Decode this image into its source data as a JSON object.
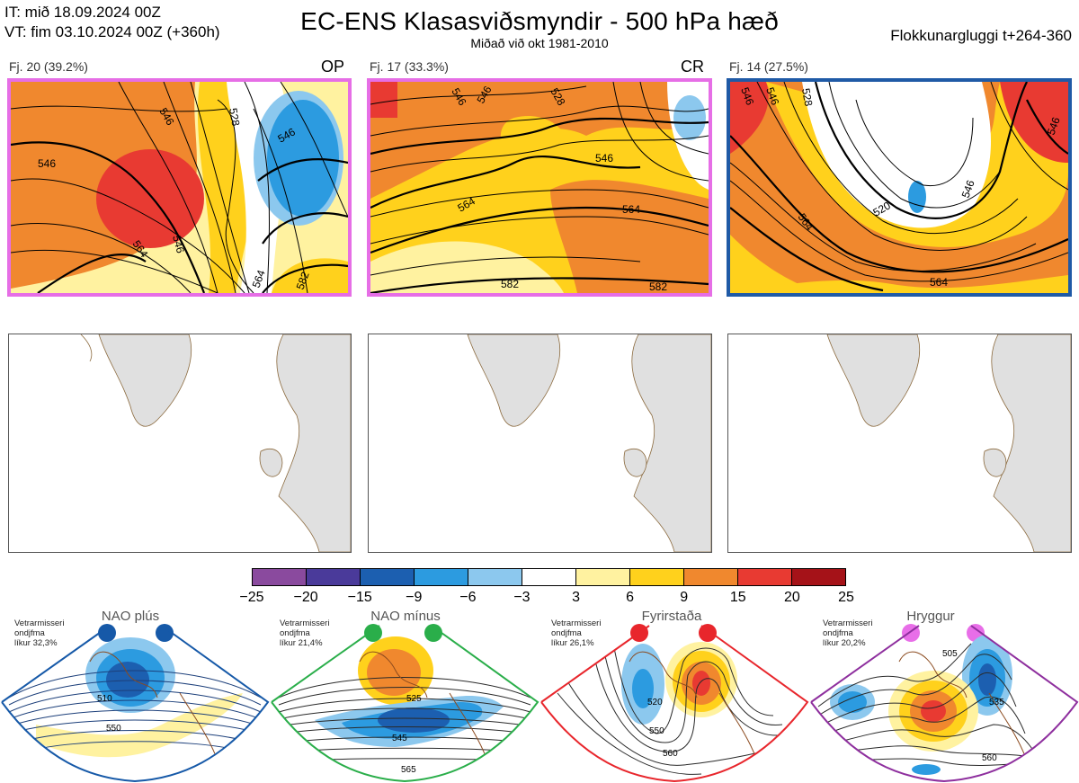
{
  "header": {
    "it_line": "IT: mið 18.09.2024 00Z",
    "vt_line": "VT: fim 03.10.2024 00Z  (+360h)",
    "title": "EC-ENS Klasasviðsmyndir - 500 hPa hæð",
    "subtitle": "Miðað við okt 1981-2010",
    "window": "Flokkunargluggi t+264-360"
  },
  "clusters": [
    {
      "label": "Fj. 20 (39.2%)",
      "tag": "OP",
      "border": "#e66ee6",
      "contours": [
        "546",
        "546",
        "546",
        "564",
        "528",
        "546",
        "564",
        "582"
      ]
    },
    {
      "label": "Fj. 17 (33.3%)",
      "tag": "CR",
      "border": "#e66ee6",
      "contours": [
        "546",
        "528",
        "546",
        "546",
        "564",
        "564",
        "582",
        "582"
      ]
    },
    {
      "label": "Fj. 14 (27.5%)",
      "tag": "",
      "border": "#1f5aa6",
      "contours": [
        "546",
        "546",
        "528",
        "546",
        "520",
        "546",
        "564",
        "564"
      ]
    }
  ],
  "legend": {
    "colors": [
      "#8a4a9e",
      "#4a3a9a",
      "#1c5fb0",
      "#2c9be0",
      "#8cc8ee",
      "#ffffff",
      "#fff2a0",
      "#ffd11c",
      "#f0882e",
      "#e83a32",
      "#a51218"
    ],
    "ticks": [
      "−25",
      "−20",
      "−15",
      "−9",
      "−6",
      "−3",
      "3",
      "6",
      "9",
      "15",
      "20",
      "25"
    ]
  },
  "regimes": [
    {
      "title": "NAO plús",
      "note": [
        "Vetrarmisseri",
        "ondjfma",
        "líkur 32,3%"
      ],
      "color": "#1659a8",
      "labels": [
        "510",
        "550"
      ]
    },
    {
      "title": "NAO mínus",
      "note": [
        "Vetrarmisseri",
        "ondjfma",
        "líkur 21,4%"
      ],
      "color": "#2aae4a",
      "labels": [
        "525",
        "545",
        "565"
      ]
    },
    {
      "title": "Fyrirstaða",
      "note": [
        "Vetrarmisseri",
        "ondjfma",
        "líkur 26,1%"
      ],
      "color": "#e8262c",
      "labels": [
        "520",
        "550",
        "560"
      ]
    },
    {
      "title": "Hryggur",
      "note": [
        "Vetrarmisseri",
        "ondjfma",
        "líkur 20,2%"
      ],
      "color": "#e86ee8",
      "labels": [
        "505",
        "535",
        "560"
      ]
    }
  ]
}
